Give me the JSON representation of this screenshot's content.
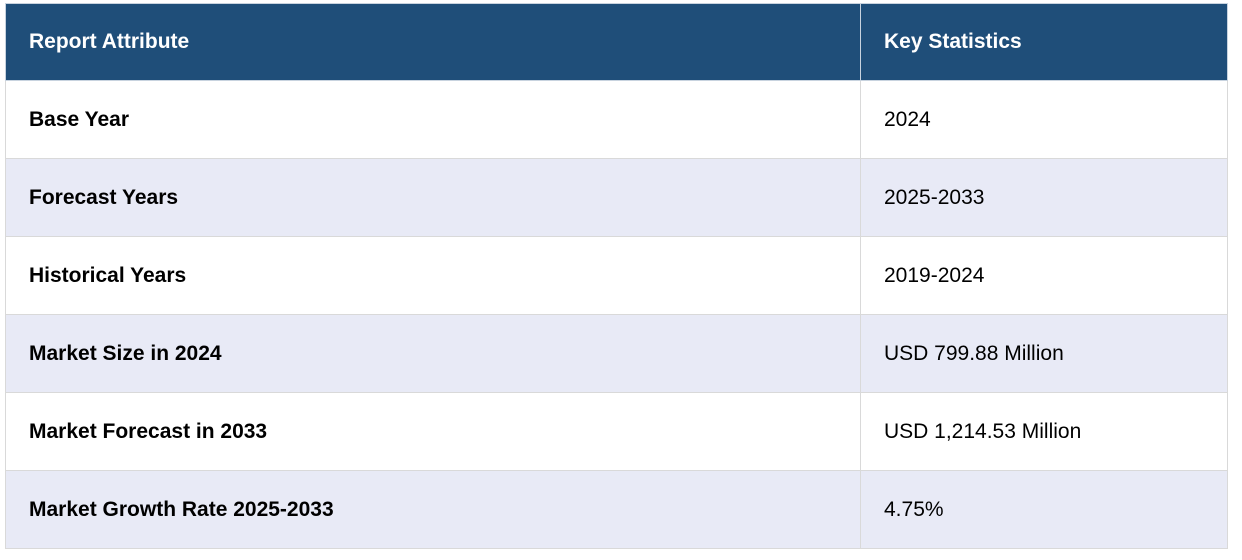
{
  "table": {
    "headers": [
      "Report Attribute",
      "Key Statistics"
    ],
    "rows": [
      {
        "attribute": "Base Year",
        "value": "2024"
      },
      {
        "attribute": "Forecast Years",
        "value": "2025-2033"
      },
      {
        "attribute": "Historical Years",
        "value": "2019-2024"
      },
      {
        "attribute": "Market Size in 2024",
        "value": "USD 799.88 Million"
      },
      {
        "attribute": "Market Forecast in 2033",
        "value": "USD 1,214.53 Million"
      },
      {
        "attribute": "Market Growth Rate 2025-2033",
        "value": "4.75%"
      }
    ],
    "colors": {
      "header_bg": "#1f4e79",
      "header_text": "#ffffff",
      "row_alt_bg": "#e8eaf6",
      "row_bg": "#ffffff",
      "border": "#d9d9d9"
    }
  }
}
